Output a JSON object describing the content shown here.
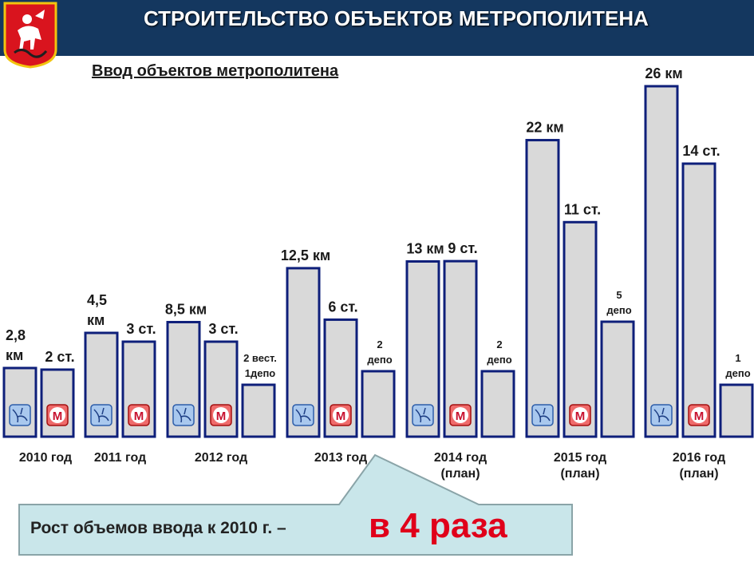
{
  "header": {
    "title": "СТРОИТЕЛЬСТВО ОБЪЕКТОВ МЕТРОПОЛИТЕНА"
  },
  "colors": {
    "header_bg": "#14375f",
    "bar_fill": "#d9d9d9",
    "bar_stroke": "#0e1f7a",
    "accent": "#e0001a",
    "callout_bg": "#c9e6ea"
  },
  "icons": {
    "km": "metro-map-icon",
    "stations": "metro-logo-icon"
  },
  "chart_data": {
    "type": "bar",
    "title": "Ввод объектов метрополитена",
    "ylim": [
      0,
      28
    ],
    "groups": [
      {
        "year": "2010 год",
        "plan": "",
        "bars": [
          {
            "kind": "km",
            "value": 2.8,
            "label": [
              "2,8",
              "км"
            ]
          },
          {
            "kind": "stations",
            "value": 2,
            "label": [
              "2 ст."
            ]
          }
        ]
      },
      {
        "year": "2011 год",
        "plan": "",
        "bars": [
          {
            "kind": "km",
            "value": 4.5,
            "label": [
              "4,5",
              "км"
            ]
          },
          {
            "kind": "stations",
            "value": 3,
            "label": [
              "3 ст."
            ]
          }
        ]
      },
      {
        "year": "2012 год",
        "plan": "",
        "bars": [
          {
            "kind": "km",
            "value": 8.5,
            "label": [
              "8,5 км"
            ]
          },
          {
            "kind": "stations",
            "value": 3,
            "label": [
              "3 ст."
            ]
          },
          {
            "kind": "depot",
            "value": 1,
            "label": [
              "2 вест.",
              "1депо"
            ]
          }
        ]
      },
      {
        "year": "2013 год",
        "plan": "",
        "bars": [
          {
            "kind": "km",
            "value": 12.5,
            "label": [
              "12,5 км"
            ]
          },
          {
            "kind": "stations",
            "value": 6,
            "label": [
              "6 ст."
            ]
          },
          {
            "kind": "depot",
            "value": 2,
            "label": [
              "2",
              "депо"
            ]
          }
        ]
      },
      {
        "year": "2014 год",
        "plan": "(план)",
        "bars": [
          {
            "kind": "km",
            "value": 13,
            "label": [
              "13 км"
            ]
          },
          {
            "kind": "stations",
            "value": 9,
            "label": [
              "9 ст."
            ]
          },
          {
            "kind": "depot",
            "value": 2,
            "label": [
              "2",
              "депо"
            ]
          }
        ]
      },
      {
        "year": "2015 год",
        "plan": "(план)",
        "bars": [
          {
            "kind": "km",
            "value": 22,
            "label": [
              "22 км"
            ]
          },
          {
            "kind": "stations",
            "value": 11,
            "label": [
              "11 ст."
            ]
          },
          {
            "kind": "depot",
            "value": 5,
            "label": [
              "5",
              "депо"
            ]
          }
        ]
      },
      {
        "year": "2016 год",
        "plan": "(план)",
        "bars": [
          {
            "kind": "km",
            "value": 26,
            "label": [
              "26 км"
            ]
          },
          {
            "kind": "stations",
            "value": 14,
            "label": [
              "14 ст."
            ]
          },
          {
            "kind": "depot",
            "value": 1,
            "label": [
              "1",
              "депо"
            ]
          }
        ]
      }
    ]
  },
  "callout": {
    "text": "Рост объемов ввода к 2010 г. –",
    "emphasis": "в 4 раза"
  }
}
